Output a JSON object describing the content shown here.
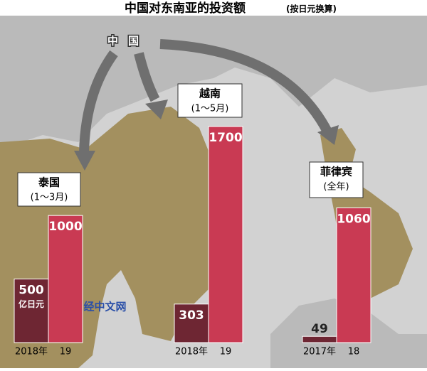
{
  "title": "中国对东南亚的投资额",
  "subtitle": "(按日元换算)",
  "map_label": "中国",
  "watermark": "日经中文网",
  "chart_data": [
    {
      "type": "bar",
      "title": "泰国",
      "subtitle": "(1～3月)",
      "categories": [
        "2018年",
        "19"
      ],
      "values": [
        500,
        1000
      ],
      "unit": "亿日元",
      "colors": [
        "#6e2633",
        "#c93a53"
      ]
    },
    {
      "type": "bar",
      "title": "越南",
      "subtitle": "(1～5月)",
      "categories": [
        "2018年",
        "19"
      ],
      "values": [
        303,
        1700
      ],
      "colors": [
        "#6e2633",
        "#c93a53"
      ]
    },
    {
      "type": "bar",
      "title": "菲律宾",
      "subtitle": "(全年)",
      "categories": [
        "2017年",
        "18"
      ],
      "values": [
        49,
        1060
      ],
      "colors": [
        "#6e2633",
        "#c93a53"
      ]
    }
  ]
}
